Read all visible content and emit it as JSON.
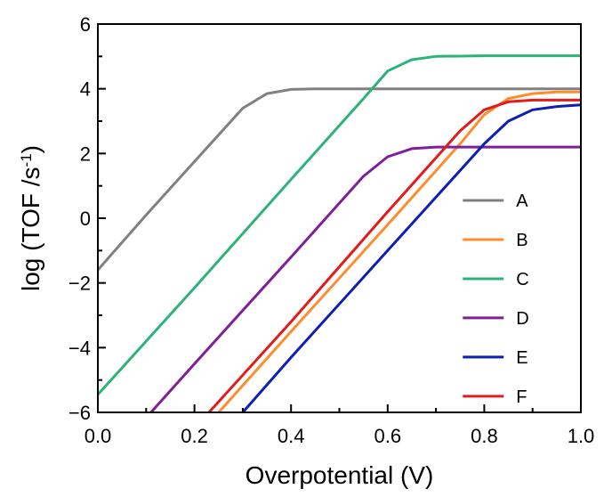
{
  "chart_data": {
    "type": "line",
    "title": "",
    "xlabel": "Overpotential (V)",
    "ylabel": "log (TOF /s",
    "ylabel_sup": "-1",
    "ylabel_close": ")",
    "xlim": [
      0.0,
      1.0
    ],
    "ylim": [
      -6,
      6
    ],
    "xticks": [
      0.0,
      0.2,
      0.4,
      0.6,
      0.8,
      1.0
    ],
    "xtick_labels": [
      "0.0",
      "0.2",
      "0.4",
      "0.6",
      "0.8",
      "1.0"
    ],
    "yticks": [
      -6,
      -4,
      -2,
      0,
      2,
      4,
      6
    ],
    "ytick_labels": [
      "−6",
      "−4",
      "−2",
      "0",
      "2",
      "4",
      "6"
    ],
    "grid": false,
    "legend_position": "bottom-right",
    "series": [
      {
        "name": "A",
        "color": "#808080",
        "x": [
          0.0,
          0.1,
          0.2,
          0.3,
          0.35,
          0.4,
          0.45,
          0.5,
          0.6,
          0.7,
          0.8,
          0.9,
          1.0
        ],
        "y": [
          -1.6,
          0.1,
          1.75,
          3.4,
          3.85,
          3.98,
          4.0,
          4.0,
          4.0,
          4.0,
          4.0,
          4.0,
          4.0
        ]
      },
      {
        "name": "B",
        "color": "#ff8c2a",
        "x": [
          0.25,
          0.4,
          0.6,
          0.75,
          0.8,
          0.85,
          0.9,
          0.95,
          1.0
        ],
        "y": [
          -6.0,
          -3.5,
          -0.2,
          2.3,
          3.2,
          3.7,
          3.85,
          3.9,
          3.9
        ]
      },
      {
        "name": "C",
        "color": "#2db37a",
        "x": [
          0.0,
          0.2,
          0.4,
          0.55,
          0.6,
          0.65,
          0.7,
          0.8,
          0.9,
          1.0
        ],
        "y": [
          -5.45,
          -2.15,
          1.2,
          3.7,
          4.55,
          4.9,
          5.0,
          5.02,
          5.02,
          5.02
        ]
      },
      {
        "name": "D",
        "color": "#7f1f9a",
        "x": [
          0.11,
          0.2,
          0.4,
          0.55,
          0.6,
          0.65,
          0.7,
          0.8,
          1.0
        ],
        "y": [
          -6.0,
          -4.5,
          -1.2,
          1.3,
          1.9,
          2.15,
          2.2,
          2.2,
          2.2
        ]
      },
      {
        "name": "E",
        "color": "#0d1fb5",
        "x": [
          0.3,
          0.4,
          0.6,
          0.8,
          0.85,
          0.9,
          0.95,
          1.0
        ],
        "y": [
          -6.0,
          -4.3,
          -1.0,
          2.3,
          3.0,
          3.35,
          3.45,
          3.5
        ]
      },
      {
        "name": "F",
        "color": "#e31b1b",
        "x": [
          0.23,
          0.4,
          0.6,
          0.75,
          0.8,
          0.85,
          0.9,
          0.95,
          1.0
        ],
        "y": [
          -6.0,
          -3.2,
          0.2,
          2.7,
          3.35,
          3.6,
          3.65,
          3.65,
          3.65
        ]
      }
    ]
  }
}
